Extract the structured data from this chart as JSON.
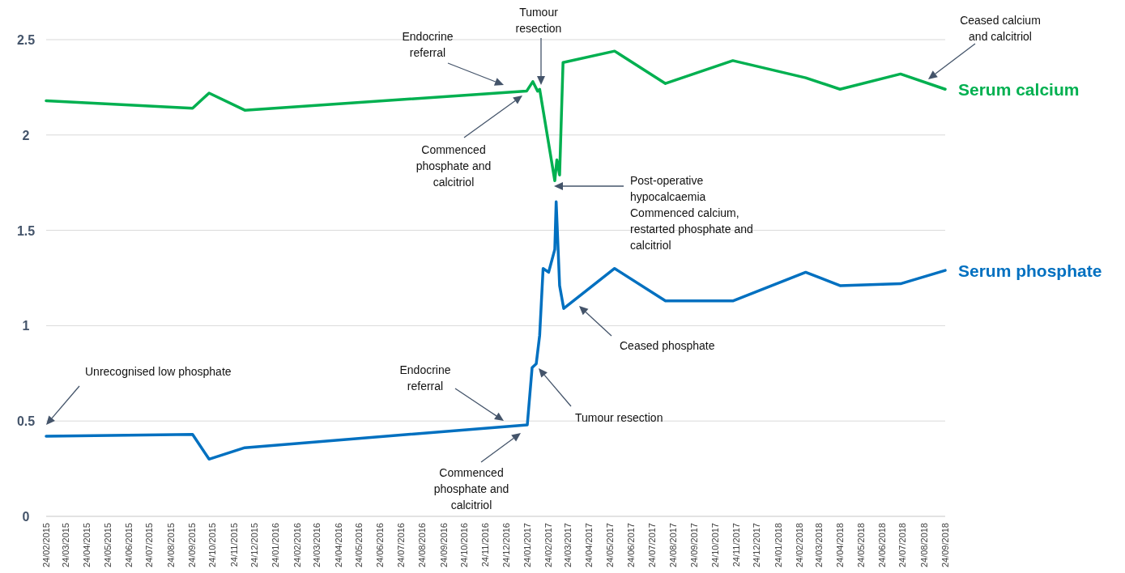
{
  "chart_data": {
    "type": "line",
    "xlim": [
      "2015-02-24",
      "2018-09-24"
    ],
    "xticks": [
      {
        "value": "2015-02-24",
        "label": "24/02/2015"
      },
      {
        "value": "2015-03-24",
        "label": "24/03/2015"
      },
      {
        "value": "2015-04-24",
        "label": "24/04/2015"
      },
      {
        "value": "2015-05-24",
        "label": "24/05/2015"
      },
      {
        "value": "2015-06-24",
        "label": "24/06/2015"
      },
      {
        "value": "2015-07-24",
        "label": "24/07/2015"
      },
      {
        "value": "2015-08-24",
        "label": "24/08/2015"
      },
      {
        "value": "2015-09-24",
        "label": "24/09/2015"
      },
      {
        "value": "2015-10-24",
        "label": "24/10/2015"
      },
      {
        "value": "2015-11-24",
        "label": "24/11/2015"
      },
      {
        "value": "2015-12-24",
        "label": "24/12/2015"
      },
      {
        "value": "2016-01-24",
        "label": "24/01/2016"
      },
      {
        "value": "2016-02-24",
        "label": "24/02/2016"
      },
      {
        "value": "2016-03-24",
        "label": "24/03/2016"
      },
      {
        "value": "2016-04-24",
        "label": "24/04/2016"
      },
      {
        "value": "2016-05-24",
        "label": "24/05/2016"
      },
      {
        "value": "2016-06-24",
        "label": "24/06/2016"
      },
      {
        "value": "2016-07-24",
        "label": "24/07/2016"
      },
      {
        "value": "2016-08-24",
        "label": "24/08/2016"
      },
      {
        "value": "2016-09-24",
        "label": "24/09/2016"
      },
      {
        "value": "2016-10-24",
        "label": "24/10/2016"
      },
      {
        "value": "2016-11-24",
        "label": "24/11/2016"
      },
      {
        "value": "2016-12-24",
        "label": "24/12/2016"
      },
      {
        "value": "2017-01-24",
        "label": "24/01/2017"
      },
      {
        "value": "2017-02-24",
        "label": "24/02/2017"
      },
      {
        "value": "2017-03-24",
        "label": "24/03/2017"
      },
      {
        "value": "2017-04-24",
        "label": "24/04/2017"
      },
      {
        "value": "2017-05-24",
        "label": "24/05/2017"
      },
      {
        "value": "2017-06-24",
        "label": "24/06/2017"
      },
      {
        "value": "2017-07-24",
        "label": "24/07/2017"
      },
      {
        "value": "2017-08-24",
        "label": "24/08/2017"
      },
      {
        "value": "2017-09-24",
        "label": "24/09/2017"
      },
      {
        "value": "2017-10-24",
        "label": "24/10/2017"
      },
      {
        "value": "2017-11-24",
        "label": "24/11/2017"
      },
      {
        "value": "2017-12-24",
        "label": "24/12/2017"
      },
      {
        "value": "2018-01-24",
        "label": "24/01/2018"
      },
      {
        "value": "2018-02-24",
        "label": "24/02/2018"
      },
      {
        "value": "2018-03-24",
        "label": "24/03/2018"
      },
      {
        "value": "2018-04-24",
        "label": "24/04/2018"
      },
      {
        "value": "2018-05-24",
        "label": "24/05/2018"
      },
      {
        "value": "2018-06-24",
        "label": "24/06/2018"
      },
      {
        "value": "2018-07-24",
        "label": "24/07/2018"
      },
      {
        "value": "2018-08-24",
        "label": "24/08/2018"
      },
      {
        "value": "2018-09-24",
        "label": "24/09/2018"
      }
    ],
    "ylim": [
      0,
      2.5
    ],
    "yticks": [
      0,
      0.5,
      1,
      1.5,
      2,
      2.5
    ],
    "grid": "y",
    "marker": "none",
    "line_style": "solid",
    "series": [
      {
        "name": "Serum calcium",
        "color": "#00b050",
        "x": [
          "2015-02-24",
          "2015-09-25",
          "2015-10-19",
          "2015-12-10",
          "2017-01-23",
          "2017-02-01",
          "2017-02-08",
          "2017-02-11",
          "2017-03-05",
          "2017-03-08",
          "2017-03-12",
          "2017-03-17",
          "2017-05-31",
          "2017-08-13",
          "2017-11-19",
          "2018-03-05",
          "2018-04-24",
          "2018-07-21",
          "2018-09-24"
        ],
        "values": [
          2.18,
          2.14,
          2.22,
          2.13,
          2.23,
          2.28,
          2.23,
          2.24,
          1.76,
          1.87,
          1.79,
          2.38,
          2.44,
          2.27,
          2.39,
          2.3,
          2.24,
          2.32,
          2.24
        ]
      },
      {
        "name": "Serum phosphate",
        "color": "#0070c0",
        "x": [
          "2015-02-24",
          "2015-09-25",
          "2015-10-19",
          "2015-12-10",
          "2017-01-24",
          "2017-01-31",
          "2017-02-06",
          "2017-02-11",
          "2017-02-16",
          "2017-02-24",
          "2017-03-05",
          "2017-03-07",
          "2017-03-12",
          "2017-03-18",
          "2017-05-31",
          "2017-08-13",
          "2017-11-19",
          "2018-03-05",
          "2018-04-24",
          "2018-07-21",
          "2018-09-24"
        ],
        "values": [
          0.42,
          0.43,
          0.3,
          0.36,
          0.48,
          0.78,
          0.8,
          0.95,
          1.3,
          1.28,
          1.4,
          1.65,
          1.21,
          1.09,
          1.3,
          1.13,
          1.13,
          1.28,
          1.21,
          1.22,
          1.29
        ]
      }
    ],
    "annotations": [
      "Unrecognised low phosphate",
      "Endocrine\nreferral",
      "Commenced\nphosphate and\ncalcitriol",
      "Tumour resection",
      "Ceased phosphate",
      "Post-operative\nhypocalcaemia\nCommenced calcium,\nrestarted phosphate and\ncalcitriol",
      "Endocrine\nreferral",
      "Tumour\nresection",
      "Commenced\nphosphate and\ncalcitriol",
      "Ceased calcium\nand calcitriol"
    ]
  }
}
